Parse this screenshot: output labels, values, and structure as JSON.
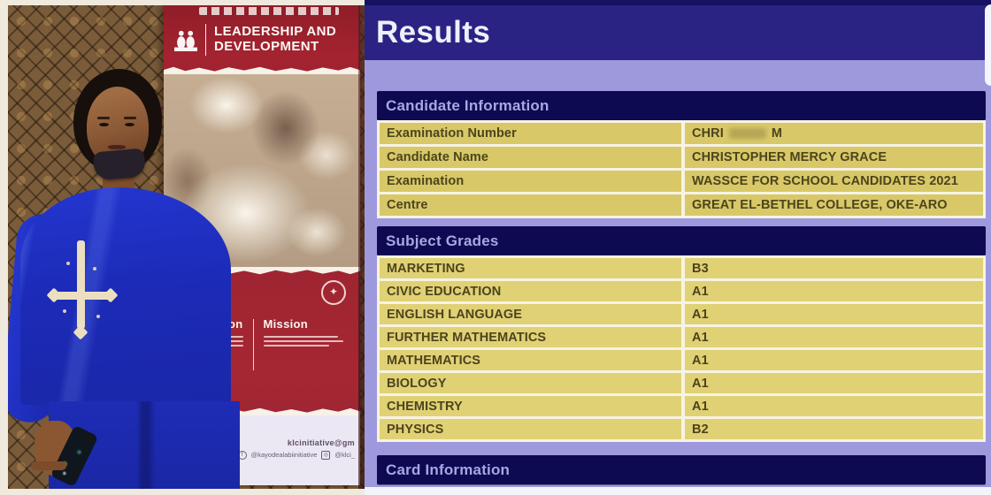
{
  "photo": {
    "banner": {
      "brand_line1": "LEADERSHIP AND",
      "brand_line2": "DEVELOPMENT",
      "vision_label": "Vision",
      "mission_label": "Mission",
      "emblem_glyph": "✦",
      "email": "klcinitiative@gm",
      "facebook_glyph": "f",
      "handle_1": "@kayodealabiinitiative",
      "instagram_glyph": "◎",
      "handle_2": "@klci_"
    }
  },
  "results_panel": {
    "title": "Results",
    "sections": {
      "candidate_information": {
        "title": "Candidate Information",
        "rows": [
          {
            "label": "Examination Number",
            "value_parts": [
              "CHRI",
              "M"
            ]
          },
          {
            "label": "Candidate Name",
            "value": "CHRISTOPHER MERCY GRACE"
          },
          {
            "label": "Examination",
            "value": "WASSCE FOR SCHOOL CANDIDATES 2021"
          },
          {
            "label": "Centre",
            "value": "GREAT EL-BETHEL COLLEGE, OKE-ARO"
          }
        ]
      },
      "subject_grades": {
        "title": "Subject Grades",
        "rows": [
          {
            "subject": "MARKETING",
            "grade": "B3"
          },
          {
            "subject": "CIVIC EDUCATION",
            "grade": "A1"
          },
          {
            "subject": "ENGLISH LANGUAGE",
            "grade": "A1"
          },
          {
            "subject": "FURTHER MATHEMATICS",
            "grade": "A1"
          },
          {
            "subject": "MATHEMATICS",
            "grade": "A1"
          },
          {
            "subject": "BIOLOGY",
            "grade": "A1"
          },
          {
            "subject": "CHEMISTRY",
            "grade": "A1"
          },
          {
            "subject": "PHYSICS",
            "grade": "B2"
          }
        ]
      },
      "card_information": {
        "title": "Card Information"
      }
    },
    "colors": {
      "header_bg": "#2a2383",
      "panel_bg": "#9e99dc",
      "bar_bg": "#0d0a51",
      "bar_text": "#a8a6e4",
      "row_bg": "#d8c868",
      "row_bg2": "#e0d175",
      "row_text": "#4c441d"
    }
  }
}
